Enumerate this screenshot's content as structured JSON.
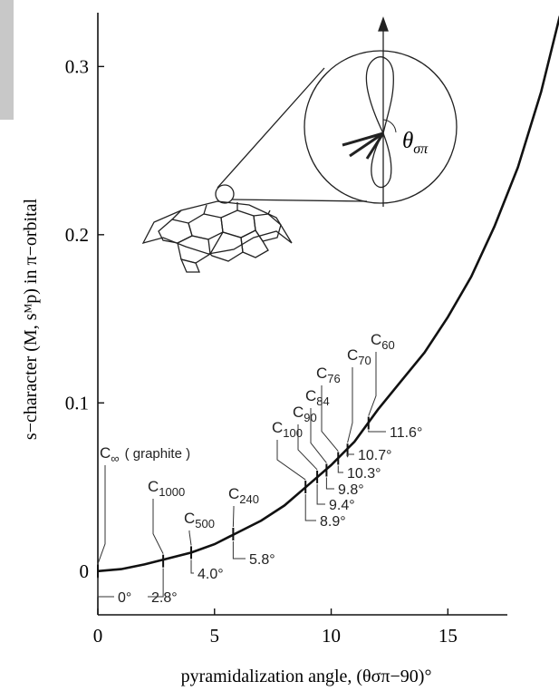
{
  "chart_data": {
    "type": "line",
    "x_label": "pyramidalization angle, (θσπ−90)°",
    "y_label": "s−character (M, sᴹp) in π−orbital",
    "xlim": [
      0,
      17.55
    ],
    "ylim": [
      -0.026,
      0.332
    ],
    "xticks": [
      0,
      5,
      10,
      15
    ],
    "yticks": [
      0,
      0.1,
      0.2,
      0.3
    ],
    "color": "#111111",
    "curve": {
      "x": [
        0,
        1,
        2,
        3,
        4,
        5,
        6,
        7,
        8,
        9,
        10,
        11,
        12,
        13,
        14,
        15,
        16,
        17,
        18,
        19,
        19.8
      ],
      "values": [
        0,
        0.0012,
        0.004,
        0.0075,
        0.011,
        0.016,
        0.023,
        0.03,
        0.039,
        0.051,
        0.063,
        0.077,
        0.096,
        0.113,
        0.13,
        0.151,
        0.175,
        0.205,
        0.24,
        0.285,
        0.33
      ]
    },
    "points": {
      "names": [
        "C",
        "C",
        "C",
        "C",
        "C",
        "C",
        "C",
        "C",
        "C",
        "C"
      ],
      "subscripts": [
        "∞",
        "1000",
        "500",
        "240",
        "100",
        "90",
        "84",
        "76",
        "70",
        "60"
      ],
      "note": "( graphite )",
      "x": [
        0,
        2.8,
        4.0,
        5.8,
        8.9,
        9.4,
        9.8,
        10.3,
        10.7,
        11.6
      ],
      "x_labels": [
        "0°",
        "2.8°",
        "4.0°",
        "5.8°",
        "8.9°",
        "9.4°",
        "9.8°",
        "10.3°",
        "10.7°",
        "11.6°"
      ],
      "values": [
        0,
        0.006,
        0.011,
        0.022,
        0.05,
        0.056,
        0.06,
        0.067,
        0.072,
        0.088
      ]
    },
    "inset_label": {
      "base": "θ",
      "sub": "σπ"
    }
  }
}
